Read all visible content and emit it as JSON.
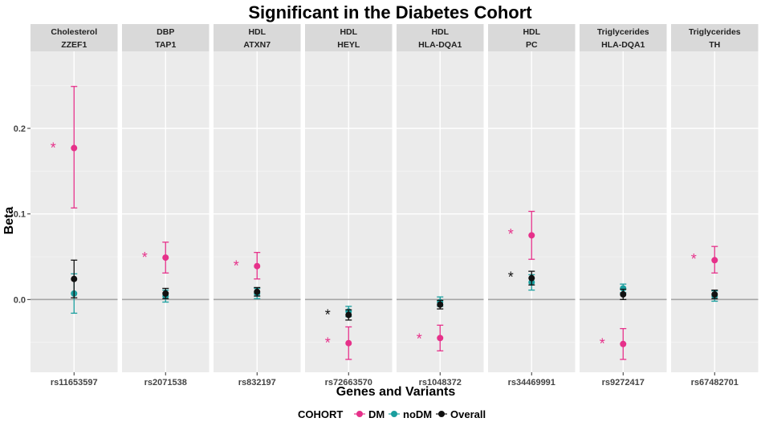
{
  "chart_data": {
    "type": "scatter",
    "subtype": "faceted-pointrange",
    "title": "Significant in the Diabetes Cohort",
    "xlabel": "Genes and Variants",
    "ylabel": "Beta",
    "ylim": [
      -0.085,
      0.29
    ],
    "yticks": [
      0.0,
      0.1,
      0.2
    ],
    "ytick_labels": [
      "0.0",
      "0.1",
      "0.2"
    ],
    "reference_line": 0.0,
    "legend": {
      "title": "COHORT",
      "position": "bottom",
      "items": [
        {
          "name": "DM",
          "color": "#e6318a"
        },
        {
          "name": "noDM",
          "color": "#1a9e9e"
        },
        {
          "name": "Overall",
          "color": "#111111"
        }
      ]
    },
    "facets": [
      {
        "trait": "Cholesterol",
        "gene": "ZZEF1",
        "variant": "rs11653597",
        "points": [
          {
            "cohort": "DM",
            "beta": 0.177,
            "lo": 0.107,
            "hi": 0.249
          },
          {
            "cohort": "noDM",
            "beta": 0.007,
            "lo": -0.016,
            "hi": 0.03
          },
          {
            "cohort": "Overall",
            "beta": 0.024,
            "lo": 0.002,
            "hi": 0.046
          }
        ],
        "stars": [
          {
            "cohort": "DM",
            "beta": 0.178
          }
        ]
      },
      {
        "trait": "DBP",
        "gene": "TAP1",
        "variant": "rs2071538",
        "points": [
          {
            "cohort": "DM",
            "beta": 0.049,
            "lo": 0.031,
            "hi": 0.067
          },
          {
            "cohort": "noDM",
            "beta": 0.004,
            "lo": -0.003,
            "hi": 0.011
          },
          {
            "cohort": "Overall",
            "beta": 0.007,
            "lo": 0.001,
            "hi": 0.013
          }
        ],
        "stars": [
          {
            "cohort": "DM",
            "beta": 0.05
          }
        ]
      },
      {
        "trait": "HDL",
        "gene": "ATXN7",
        "variant": "rs832197",
        "points": [
          {
            "cohort": "DM",
            "beta": 0.039,
            "lo": 0.024,
            "hi": 0.055
          },
          {
            "cohort": "noDM",
            "beta": 0.007,
            "lo": 0.001,
            "hi": 0.013
          },
          {
            "cohort": "Overall",
            "beta": 0.009,
            "lo": 0.004,
            "hi": 0.014
          }
        ],
        "stars": [
          {
            "cohort": "DM",
            "beta": 0.04
          }
        ]
      },
      {
        "trait": "HDL",
        "gene": "HEYL",
        "variant": "rs72663570",
        "points": [
          {
            "cohort": "DM",
            "beta": -0.051,
            "lo": -0.07,
            "hi": -0.032
          },
          {
            "cohort": "noDM",
            "beta": -0.014,
            "lo": -0.02,
            "hi": -0.008
          },
          {
            "cohort": "Overall",
            "beta": -0.018,
            "lo": -0.024,
            "hi": -0.012
          }
        ],
        "stars": [
          {
            "cohort": "DM",
            "beta": -0.05
          },
          {
            "cohort": "Overall",
            "beta": -0.017
          }
        ]
      },
      {
        "trait": "HDL",
        "gene": "HLA-DQA1",
        "variant": "rs1048372",
        "points": [
          {
            "cohort": "DM",
            "beta": -0.045,
            "lo": -0.06,
            "hi": -0.03
          },
          {
            "cohort": "noDM",
            "beta": -0.003,
            "lo": -0.008,
            "hi": 0.003
          },
          {
            "cohort": "Overall",
            "beta": -0.006,
            "lo": -0.011,
            "hi": -0.001
          }
        ],
        "stars": [
          {
            "cohort": "DM",
            "beta": -0.045
          }
        ]
      },
      {
        "trait": "HDL",
        "gene": "PC",
        "variant": "rs34469991",
        "points": [
          {
            "cohort": "DM",
            "beta": 0.075,
            "lo": 0.047,
            "hi": 0.103
          },
          {
            "cohort": "noDM",
            "beta": 0.02,
            "lo": 0.011,
            "hi": 0.029
          },
          {
            "cohort": "Overall",
            "beta": 0.025,
            "lo": 0.017,
            "hi": 0.033
          }
        ],
        "stars": [
          {
            "cohort": "DM",
            "beta": 0.077
          },
          {
            "cohort": "Overall",
            "beta": 0.027
          }
        ]
      },
      {
        "trait": "Triglycerides",
        "gene": "HLA-DQA1",
        "variant": "rs9272417",
        "points": [
          {
            "cohort": "DM",
            "beta": -0.052,
            "lo": -0.07,
            "hi": -0.034
          },
          {
            "cohort": "noDM",
            "beta": 0.013,
            "lo": 0.008,
            "hi": 0.018
          },
          {
            "cohort": "Overall",
            "beta": 0.006,
            "lo": 0.0,
            "hi": 0.012
          }
        ],
        "stars": [
          {
            "cohort": "DM",
            "beta": -0.051
          }
        ]
      },
      {
        "trait": "Triglycerides",
        "gene": "TH",
        "variant": "rs67482701",
        "points": [
          {
            "cohort": "DM",
            "beta": 0.046,
            "lo": 0.031,
            "hi": 0.062
          },
          {
            "cohort": "noDM",
            "beta": 0.004,
            "lo": -0.002,
            "hi": 0.01
          },
          {
            "cohort": "Overall",
            "beta": 0.006,
            "lo": 0.001,
            "hi": 0.011
          }
        ],
        "stars": [
          {
            "cohort": "DM",
            "beta": 0.048
          }
        ]
      }
    ]
  },
  "colors": {
    "DM": "#e6318a",
    "noDM": "#1a9e9e",
    "Overall": "#111111",
    "panel_bg": "#ebebeb",
    "strip_bg": "#d9d9d9",
    "grid": "#ffffff",
    "zero_line": "#a6a6a6"
  }
}
